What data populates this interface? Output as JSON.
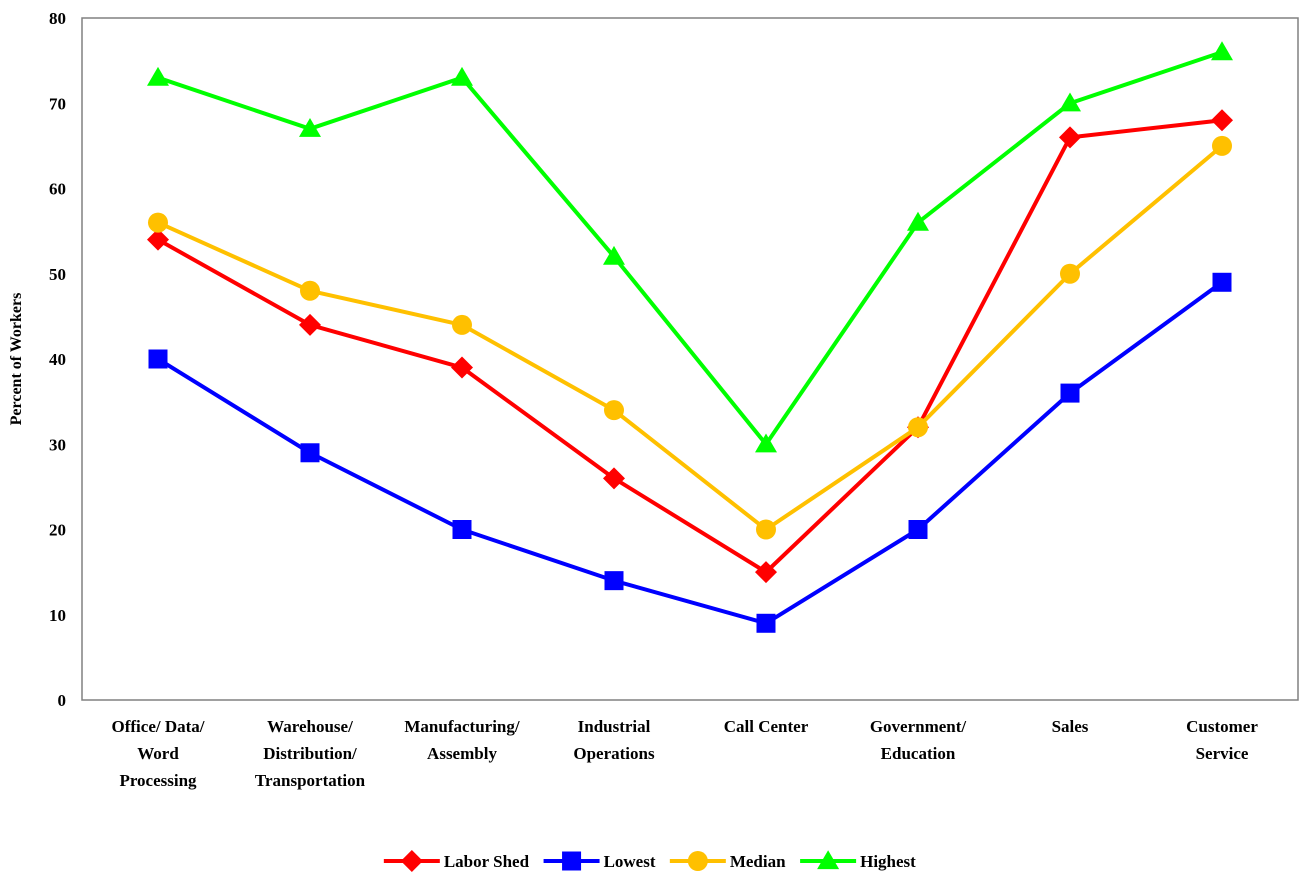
{
  "chart_data": {
    "type": "line",
    "title": "",
    "xlabel": "",
    "ylabel": "Percent of Workers",
    "ylim": [
      0,
      80
    ],
    "yticks": [
      0,
      10,
      20,
      30,
      40,
      50,
      60,
      70,
      80
    ],
    "grid": false,
    "legend_position": "bottom",
    "categories": [
      [
        "Office/ Data/",
        "Word",
        "Processing"
      ],
      [
        "Warehouse/",
        "Distribution/",
        "Transportation"
      ],
      [
        "Manufacturing/",
        "Assembly"
      ],
      [
        "Industrial",
        "Operations"
      ],
      [
        "Call Center"
      ],
      [
        "Government/",
        "Education"
      ],
      [
        "Sales"
      ],
      [
        "Customer",
        "Service"
      ]
    ],
    "series": [
      {
        "name": "Labor Shed",
        "color": "#ff0000",
        "marker": "diamond",
        "values": [
          54,
          44,
          39,
          26,
          15,
          32,
          66,
          68
        ]
      },
      {
        "name": "Lowest",
        "color": "#0000ff",
        "marker": "square",
        "values": [
          40,
          29,
          20,
          14,
          9,
          20,
          36,
          49
        ]
      },
      {
        "name": "Median",
        "color": "#ffc000",
        "marker": "circle",
        "values": [
          56,
          48,
          44,
          34,
          20,
          32,
          50,
          65
        ]
      },
      {
        "name": "Highest",
        "color": "#00ff00",
        "marker": "triangle",
        "values": [
          73,
          67,
          73,
          52,
          30,
          56,
          70,
          76
        ]
      }
    ]
  }
}
